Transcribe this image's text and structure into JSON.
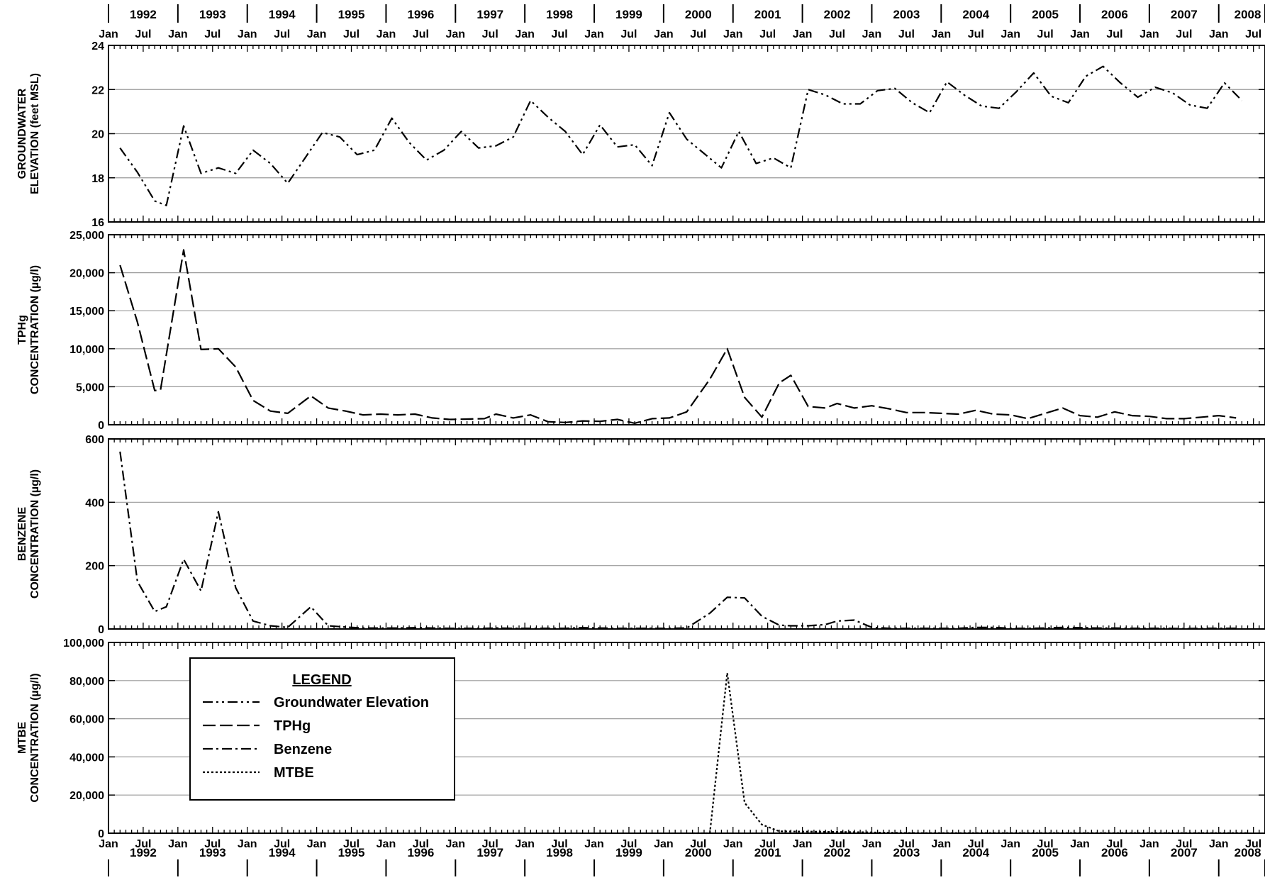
{
  "chart_data": [
    {
      "type": "line",
      "panel": "groundwater",
      "ylabel": [
        "GROUNDWATER",
        "ELEVATION (feet MSL)"
      ],
      "ylim": [
        16,
        24
      ],
      "yticks": [
        16,
        18,
        20,
        22,
        24
      ],
      "ytick_labels": [
        "16",
        "18",
        "20",
        "22",
        "24"
      ],
      "grid": true,
      "series": [
        {
          "name": "Groundwater Elevation",
          "dash": "dash-dot-dot",
          "points": [
            [
              "1992-03",
              19.35
            ],
            [
              "1992-06",
              18.25
            ],
            [
              "1992-09",
              16.95
            ],
            [
              "1992-11",
              16.75
            ],
            [
              "1993-02",
              20.35
            ],
            [
              "1993-05",
              18.2
            ],
            [
              "1993-08",
              18.45
            ],
            [
              "1993-11",
              18.2
            ],
            [
              "1994-02",
              19.25
            ],
            [
              "1994-05",
              18.65
            ],
            [
              "1994-08",
              17.75
            ],
            [
              "1994-11",
              18.9
            ],
            [
              "1995-02",
              20.05
            ],
            [
              "1995-05",
              19.85
            ],
            [
              "1995-08",
              19.05
            ],
            [
              "1995-11",
              19.25
            ],
            [
              "1996-02",
              20.7
            ],
            [
              "1996-05",
              19.6
            ],
            [
              "1996-08",
              18.8
            ],
            [
              "1996-11",
              19.25
            ],
            [
              "1997-02",
              20.1
            ],
            [
              "1997-05",
              19.35
            ],
            [
              "1997-08",
              19.45
            ],
            [
              "1997-11",
              19.85
            ],
            [
              "1998-02",
              21.5
            ],
            [
              "1998-05",
              20.75
            ],
            [
              "1998-08",
              20.1
            ],
            [
              "1998-11",
              19.05
            ],
            [
              "1999-02",
              20.4
            ],
            [
              "1999-05",
              19.4
            ],
            [
              "1999-08",
              19.5
            ],
            [
              "1999-11",
              18.55
            ],
            [
              "2000-02",
              20.95
            ],
            [
              "2000-05",
              19.75
            ],
            [
              "2000-08",
              19.1
            ],
            [
              "2000-11",
              18.45
            ],
            [
              "2001-02",
              20.1
            ],
            [
              "2001-05",
              18.65
            ],
            [
              "2001-08",
              18.9
            ],
            [
              "2001-11",
              18.45
            ],
            [
              "2002-02",
              22.0
            ],
            [
              "2002-05",
              21.75
            ],
            [
              "2002-08",
              21.35
            ],
            [
              "2002-11",
              21.35
            ],
            [
              "2003-02",
              21.95
            ],
            [
              "2003-05",
              22.05
            ],
            [
              "2003-08",
              21.4
            ],
            [
              "2003-11",
              20.95
            ],
            [
              "2004-02",
              22.35
            ],
            [
              "2004-05",
              21.75
            ],
            [
              "2004-08",
              21.25
            ],
            [
              "2004-11",
              21.15
            ],
            [
              "2005-02",
              21.9
            ],
            [
              "2005-05",
              22.75
            ],
            [
              "2005-08",
              21.7
            ],
            [
              "2005-11",
              21.4
            ],
            [
              "2006-02",
              22.6
            ],
            [
              "2006-05",
              23.05
            ],
            [
              "2006-08",
              22.3
            ],
            [
              "2006-11",
              21.65
            ],
            [
              "2007-02",
              22.1
            ],
            [
              "2007-05",
              21.85
            ],
            [
              "2007-08",
              21.3
            ],
            [
              "2007-11",
              21.15
            ],
            [
              "2008-02",
              22.3
            ],
            [
              "2008-05",
              21.5
            ]
          ]
        }
      ]
    },
    {
      "type": "line",
      "panel": "tphg",
      "ylabel": [
        "TPHg",
        "CONCENTRATION (µg/l)"
      ],
      "ylim": [
        0,
        25000
      ],
      "yticks": [
        0,
        5000,
        10000,
        15000,
        20000,
        25000
      ],
      "ytick_labels": [
        "0",
        "5,000",
        "10,000",
        "15,000",
        "20,000",
        "25,000"
      ],
      "grid": true,
      "series": [
        {
          "name": "TPHg",
          "dash": "long-dash",
          "points": [
            [
              "1992-03",
              21000
            ],
            [
              "1992-06",
              13500
            ],
            [
              "1992-09",
              4500
            ],
            [
              "1992-10",
              4600
            ],
            [
              "1993-02",
              23000
            ],
            [
              "1993-05",
              9900
            ],
            [
              "1993-08",
              10000
            ],
            [
              "1993-11",
              7600
            ],
            [
              "1994-02",
              3200
            ],
            [
              "1994-05",
              1800
            ],
            [
              "1994-08",
              1500
            ],
            [
              "1994-12",
              3800
            ],
            [
              "1995-03",
              2200
            ],
            [
              "1995-06",
              1800
            ],
            [
              "1995-09",
              1300
            ],
            [
              "1995-12",
              1400
            ],
            [
              "1996-03",
              1300
            ],
            [
              "1996-06",
              1400
            ],
            [
              "1996-09",
              900
            ],
            [
              "1996-12",
              700
            ],
            [
              "1997-03",
              750
            ],
            [
              "1997-06",
              800
            ],
            [
              "1997-08",
              1400
            ],
            [
              "1997-11",
              900
            ],
            [
              "1998-02",
              1300
            ],
            [
              "1998-05",
              400
            ],
            [
              "1998-08",
              300
            ],
            [
              "1998-11",
              500
            ],
            [
              "1999-02",
              450
            ],
            [
              "1999-05",
              700
            ],
            [
              "1999-08",
              200
            ],
            [
              "1999-11",
              800
            ],
            [
              "2000-02",
              900
            ],
            [
              "2000-05",
              1700
            ],
            [
              "2000-09",
              6000
            ],
            [
              "2000-12",
              10000
            ],
            [
              "2001-03",
              3600
            ],
            [
              "2001-06",
              1000
            ],
            [
              "2001-09",
              5500
            ],
            [
              "2001-11",
              6500
            ],
            [
              "2002-02",
              2400
            ],
            [
              "2002-05",
              2200
            ],
            [
              "2002-07",
              2800
            ],
            [
              "2002-10",
              2200
            ],
            [
              "2003-01",
              2500
            ],
            [
              "2003-04",
              2100
            ],
            [
              "2003-07",
              1600
            ],
            [
              "2003-10",
              1600
            ],
            [
              "2004-01",
              1500
            ],
            [
              "2004-04",
              1400
            ],
            [
              "2004-07",
              1900
            ],
            [
              "2004-10",
              1400
            ],
            [
              "2005-01",
              1300
            ],
            [
              "2005-04",
              800
            ],
            [
              "2005-07",
              1500
            ],
            [
              "2005-10",
              2200
            ],
            [
              "2006-01",
              1200
            ],
            [
              "2006-04",
              1000
            ],
            [
              "2006-07",
              1700
            ],
            [
              "2006-10",
              1200
            ],
            [
              "2007-01",
              1100
            ],
            [
              "2007-04",
              800
            ],
            [
              "2007-07",
              800
            ],
            [
              "2007-10",
              1000
            ],
            [
              "2008-01",
              1200
            ],
            [
              "2008-04",
              900
            ]
          ]
        }
      ]
    },
    {
      "type": "line",
      "panel": "benzene",
      "ylabel": [
        "BENZENE",
        "CONCENTRATION (µg/l)"
      ],
      "ylim": [
        0,
        600
      ],
      "yticks": [
        0,
        200,
        400,
        600
      ],
      "ytick_labels": [
        "0",
        "200",
        "400",
        "600"
      ],
      "grid": true,
      "series": [
        {
          "name": "Benzene",
          "dash": "dash-dot",
          "points": [
            [
              "1992-03",
              560
            ],
            [
              "1992-06",
              150
            ],
            [
              "1992-09",
              55
            ],
            [
              "1992-11",
              70
            ],
            [
              "1993-02",
              220
            ],
            [
              "1993-05",
              120
            ],
            [
              "1993-08",
              370
            ],
            [
              "1993-11",
              130
            ],
            [
              "1994-02",
              25
            ],
            [
              "1994-05",
              10
            ],
            [
              "1994-08",
              5
            ],
            [
              "1994-12",
              70
            ],
            [
              "1995-03",
              10
            ],
            [
              "1995-06",
              6
            ],
            [
              "1995-09",
              3
            ],
            [
              "1995-12",
              3
            ],
            [
              "1996-03",
              3
            ],
            [
              "1996-06",
              4
            ],
            [
              "1996-09",
              3
            ],
            [
              "1996-12",
              2
            ],
            [
              "1997-03",
              2
            ],
            [
              "1997-06",
              2
            ],
            [
              "1997-08",
              3
            ],
            [
              "1997-11",
              2
            ],
            [
              "1998-02",
              2
            ],
            [
              "1998-05",
              2
            ],
            [
              "1998-08",
              2
            ],
            [
              "1998-11",
              4
            ],
            [
              "1999-02",
              3
            ],
            [
              "1999-05",
              2
            ],
            [
              "1999-08",
              2
            ],
            [
              "1999-11",
              2
            ],
            [
              "2000-02",
              2
            ],
            [
              "2000-05",
              3
            ],
            [
              "2000-09",
              50
            ],
            [
              "2000-12",
              100
            ],
            [
              "2001-03",
              98
            ],
            [
              "2001-06",
              40
            ],
            [
              "2001-09",
              12
            ],
            [
              "2001-11",
              10
            ],
            [
              "2002-02",
              10
            ],
            [
              "2002-05",
              14
            ],
            [
              "2002-07",
              25
            ],
            [
              "2002-10",
              28
            ],
            [
              "2003-01",
              5
            ],
            [
              "2003-04",
              2
            ],
            [
              "2003-07",
              2
            ],
            [
              "2003-10",
              2
            ],
            [
              "2004-01",
              2
            ],
            [
              "2004-04",
              2
            ],
            [
              "2004-07",
              5
            ],
            [
              "2004-10",
              5
            ],
            [
              "2005-01",
              2
            ],
            [
              "2005-04",
              2
            ],
            [
              "2005-07",
              3
            ],
            [
              "2005-10",
              5
            ],
            [
              "2006-01",
              4
            ],
            [
              "2006-04",
              3
            ],
            [
              "2006-07",
              3
            ],
            [
              "2006-10",
              2
            ],
            [
              "2007-01",
              2
            ],
            [
              "2007-04",
              2
            ],
            [
              "2007-07",
              1
            ],
            [
              "2007-10",
              2
            ],
            [
              "2008-01",
              2
            ],
            [
              "2008-04",
              2
            ]
          ]
        }
      ]
    },
    {
      "type": "line",
      "panel": "mtbe",
      "ylabel": [
        "MTBE",
        "CONCENTRATION (µg/l)"
      ],
      "ylim": [
        0,
        100000
      ],
      "yticks": [
        0,
        20000,
        40000,
        60000,
        80000,
        100000
      ],
      "ytick_labels": [
        "0",
        "20,000",
        "40,000",
        "60,000",
        "80,000",
        "100,000"
      ],
      "grid": true,
      "series": [
        {
          "name": "MTBE",
          "dash": "dotted",
          "points": [
            [
              "2000-06",
              0
            ],
            [
              "2000-09",
              0
            ],
            [
              "2000-12",
              84000
            ],
            [
              "2001-03",
              16000
            ],
            [
              "2001-06",
              4500
            ],
            [
              "2001-09",
              1000
            ],
            [
              "2001-12",
              900
            ],
            [
              "2002-03",
              800
            ],
            [
              "2002-06",
              700
            ],
            [
              "2002-09",
              600
            ],
            [
              "2002-12",
              500
            ],
            [
              "2003-03",
              300
            ],
            [
              "2003-06",
              200
            ],
            [
              "2003-09",
              100
            ],
            [
              "2003-12",
              100
            ],
            [
              "2004-03",
              100
            ],
            [
              "2004-06",
              100
            ],
            [
              "2004-09",
              100
            ],
            [
              "2004-12",
              100
            ],
            [
              "2005-03",
              100
            ],
            [
              "2005-06",
              100
            ],
            [
              "2005-09",
              100
            ],
            [
              "2005-12",
              100
            ],
            [
              "2006-03",
              100
            ],
            [
              "2006-06",
              100
            ],
            [
              "2006-09",
              100
            ],
            [
              "2006-12",
              100
            ],
            [
              "2007-03",
              100
            ],
            [
              "2007-06",
              100
            ],
            [
              "2007-09",
              100
            ],
            [
              "2007-12",
              100
            ],
            [
              "2008-03",
              100
            ],
            [
              "2008-06",
              100
            ]
          ]
        }
      ]
    }
  ],
  "x_axis": {
    "start": "1992-01",
    "end": "2008-09",
    "years": [
      "1992",
      "1993",
      "1994",
      "1995",
      "1996",
      "1997",
      "1998",
      "1999",
      "2000",
      "2001",
      "2002",
      "2003",
      "2004",
      "2005",
      "2006",
      "2007",
      "2008"
    ],
    "month_labels": {
      "jan": "Jan",
      "jul": "Jul"
    }
  },
  "legend": {
    "title": "LEGEND",
    "placement": "inside-bottom-left",
    "items": [
      {
        "label": "Groundwater Elevation",
        "dash": "dash-dot-dot"
      },
      {
        "label": "TPHg",
        "dash": "long-dash"
      },
      {
        "label": "Benzene",
        "dash": "dash-dot"
      },
      {
        "label": "MTBE",
        "dash": "dotted"
      }
    ]
  }
}
